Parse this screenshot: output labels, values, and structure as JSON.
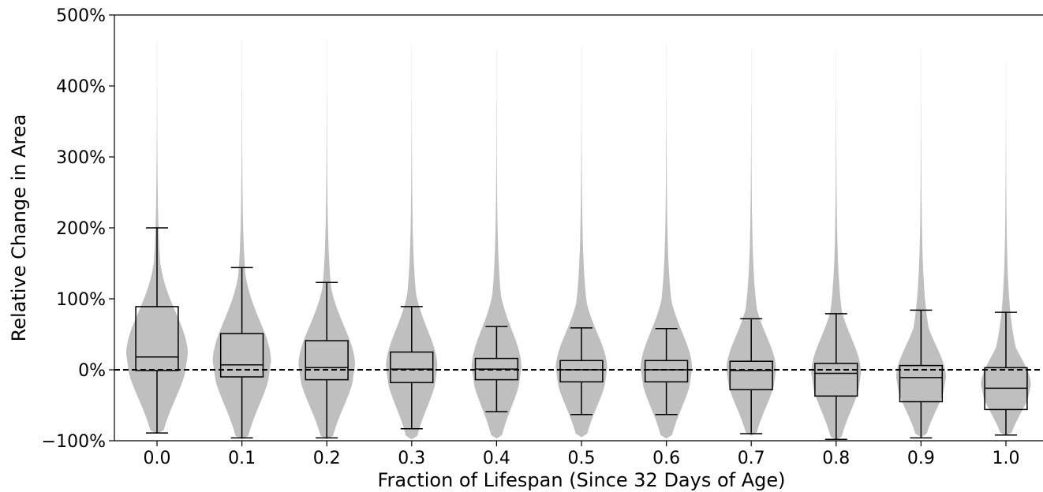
{
  "chart_data": {
    "type": "violin",
    "xlabel": "Fraction of Lifespan (Since 32 Days of Age)",
    "ylabel": "Relative Change in Area",
    "ylim": [
      -100,
      500
    ],
    "yticks": [
      -100,
      0,
      100,
      200,
      300,
      400,
      500
    ],
    "ytick_labels": [
      "−100%",
      "0%",
      "100%",
      "200%",
      "300%",
      "400%",
      "500%"
    ],
    "categories": [
      "0.0",
      "0.1",
      "0.2",
      "0.3",
      "0.4",
      "0.5",
      "0.6",
      "0.7",
      "0.8",
      "0.9",
      "1.0"
    ],
    "reference_line": {
      "y": 0,
      "style": "dashed"
    },
    "violin_color": "#bfbfbf",
    "box_color": "#000000",
    "boxes": [
      {
        "whisker_low": -89,
        "q1": -1,
        "median": 18,
        "q3": 89,
        "whisker_high": 200
      },
      {
        "whisker_low": -96,
        "q1": -10,
        "median": 7,
        "q3": 51,
        "whisker_high": 144
      },
      {
        "whisker_low": -96,
        "q1": -14,
        "median": 3,
        "q3": 41,
        "whisker_high": 123
      },
      {
        "whisker_low": -83,
        "q1": -18,
        "median": 1,
        "q3": 25,
        "whisker_high": 89
      },
      {
        "whisker_low": -59,
        "q1": -14,
        "median": 1,
        "q3": 16,
        "whisker_high": 61
      },
      {
        "whisker_low": -63,
        "q1": -17,
        "median": 0,
        "q3": 13,
        "whisker_high": 59
      },
      {
        "whisker_low": -63,
        "q1": -17,
        "median": 0,
        "q3": 13,
        "whisker_high": 58
      },
      {
        "whisker_low": -90,
        "q1": -28,
        "median": -1,
        "q3": 12,
        "whisker_high": 72
      },
      {
        "whisker_low": -98,
        "q1": -37,
        "median": -5,
        "q3": 9,
        "whisker_high": 79
      },
      {
        "whisker_low": -96,
        "q1": -45,
        "median": -11,
        "q3": 6,
        "whisker_high": 84
      },
      {
        "whisker_low": -92,
        "q1": -56,
        "median": -26,
        "q3": 3,
        "whisker_high": 81
      }
    ],
    "violins": [
      {
        "min": -90,
        "max": 500,
        "peak": 20,
        "half_width": 0.36
      },
      {
        "min": -98,
        "max": 500,
        "peak": 10,
        "half_width": 0.34
      },
      {
        "min": -98,
        "max": 500,
        "peak": 5,
        "half_width": 0.33
      },
      {
        "min": -98,
        "max": 500,
        "peak": 2,
        "half_width": 0.3
      },
      {
        "min": -97,
        "max": 500,
        "peak": 2,
        "half_width": 0.29
      },
      {
        "min": -95,
        "max": 500,
        "peak": 0,
        "half_width": 0.3
      },
      {
        "min": -97,
        "max": 500,
        "peak": 0,
        "half_width": 0.3
      },
      {
        "min": -93,
        "max": 500,
        "peak": -2,
        "half_width": 0.29
      },
      {
        "min": -99,
        "max": 500,
        "peak": -6,
        "half_width": 0.29
      },
      {
        "min": -95,
        "max": 500,
        "peak": -12,
        "half_width": 0.29
      },
      {
        "min": -93,
        "max": 480,
        "peak": -22,
        "half_width": 0.29
      }
    ]
  }
}
